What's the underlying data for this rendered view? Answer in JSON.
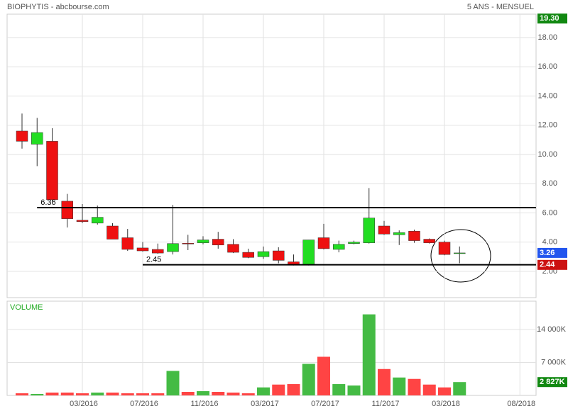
{
  "chart_data": [
    {
      "type": "candlestick",
      "title": "BIOPHYTIS - abcbourse.com",
      "subtitle": "5 ANS - MENSUEL",
      "categories": [
        null,
        null,
        null,
        null,
        "03/2016",
        null,
        null,
        null,
        "07/2016",
        null,
        null,
        null,
        "11/2016",
        null,
        null,
        null,
        "03/2017",
        null,
        null,
        null,
        "07/2017",
        null,
        null,
        null,
        "11/2017",
        null,
        null,
        null,
        "03/2018",
        null,
        null,
        null,
        null,
        "08/2018",
        null
      ],
      "open": [
        11.6,
        10.7,
        10.9,
        6.8,
        5.5,
        5.3,
        5.1,
        4.3,
        3.6,
        3.5,
        3.35,
        3.92,
        3.95,
        4.2,
        3.85,
        3.3,
        3.0,
        3.4,
        2.65,
        2.45,
        4.3,
        3.5,
        3.9,
        3.95,
        5.1,
        4.5,
        4.75,
        4.2,
        4.0,
        3.26,
        null,
        null,
        null,
        null,
        null
      ],
      "high": [
        12.8,
        12.5,
        11.8,
        7.3,
        6.6,
        6.5,
        5.3,
        4.9,
        4.0,
        3.9,
        6.55,
        4.5,
        4.4,
        4.7,
        4.2,
        3.55,
        3.7,
        3.65,
        3.15,
        4.15,
        5.25,
        4.1,
        4.1,
        7.7,
        5.45,
        4.8,
        4.85,
        4.25,
        4.1,
        3.7,
        null,
        null,
        null,
        null,
        null
      ],
      "low": [
        10.4,
        9.2,
        6.8,
        5.0,
        5.3,
        5.2,
        4.2,
        3.4,
        3.35,
        3.2,
        3.15,
        3.45,
        3.85,
        3.55,
        3.25,
        2.9,
        2.85,
        2.55,
        2.4,
        2.4,
        3.5,
        3.3,
        3.85,
        3.9,
        4.5,
        3.8,
        3.95,
        3.9,
        3.1,
        2.55,
        null,
        null,
        null,
        null,
        null
      ],
      "close": [
        10.9,
        11.5,
        6.9,
        5.6,
        5.4,
        5.7,
        4.2,
        3.5,
        3.4,
        3.25,
        3.9,
        3.88,
        4.15,
        3.8,
        3.3,
        2.95,
        3.35,
        2.75,
        2.45,
        4.15,
        3.55,
        3.85,
        4.0,
        5.65,
        4.55,
        4.65,
        4.1,
        3.95,
        3.15,
        3.26,
        null,
        null,
        null,
        null,
        null
      ],
      "up_color": "#22dd22",
      "down_color": "#ee1111",
      "ylim": [
        0.2,
        19.6
      ],
      "yticks": [
        {
          "value": 2,
          "label": "2.00"
        },
        {
          "value": 4,
          "label": "4.00"
        },
        {
          "value": 6,
          "label": "6.00"
        },
        {
          "value": 8,
          "label": "8.00"
        },
        {
          "value": 10,
          "label": "10.00"
        },
        {
          "value": 12,
          "label": "12.00"
        },
        {
          "value": 14,
          "label": "14.00"
        },
        {
          "value": 16,
          "label": "16.00"
        },
        {
          "value": 18,
          "label": "18.00"
        }
      ],
      "grid": true,
      "levels": [
        {
          "value": 6.36,
          "label": "6.36"
        },
        {
          "value": 2.45,
          "label": "2.45"
        }
      ],
      "tags": [
        {
          "value": 19.3,
          "label": "19.30",
          "color": "#118811"
        },
        {
          "value": 3.26,
          "label": "3.26",
          "color": "#2255ee"
        },
        {
          "value": 2.44,
          "label": "2.44",
          "color": "#cc1111"
        }
      ]
    },
    {
      "type": "bar",
      "title": "VOLUME",
      "values": [
        450,
        300,
        600,
        600,
        450,
        600,
        600,
        450,
        450,
        450,
        5200,
        750,
        900,
        750,
        600,
        450,
        1700,
        2300,
        2400,
        6700,
        8200,
        2400,
        2100,
        17200,
        5600,
        3800,
        3500,
        2300,
        1700,
        2827
      ],
      "up_color": "#44bb44",
      "down_color": "#ff4444",
      "ylim": [
        0,
        20000
      ],
      "yticks": [
        {
          "value": 7000,
          "label": "7 000K"
        },
        {
          "value": 14000,
          "label": "14 000K"
        }
      ],
      "grid": true,
      "tags": [
        {
          "value": 2827,
          "label": "2 827K",
          "color": "#118811"
        }
      ]
    }
  ]
}
